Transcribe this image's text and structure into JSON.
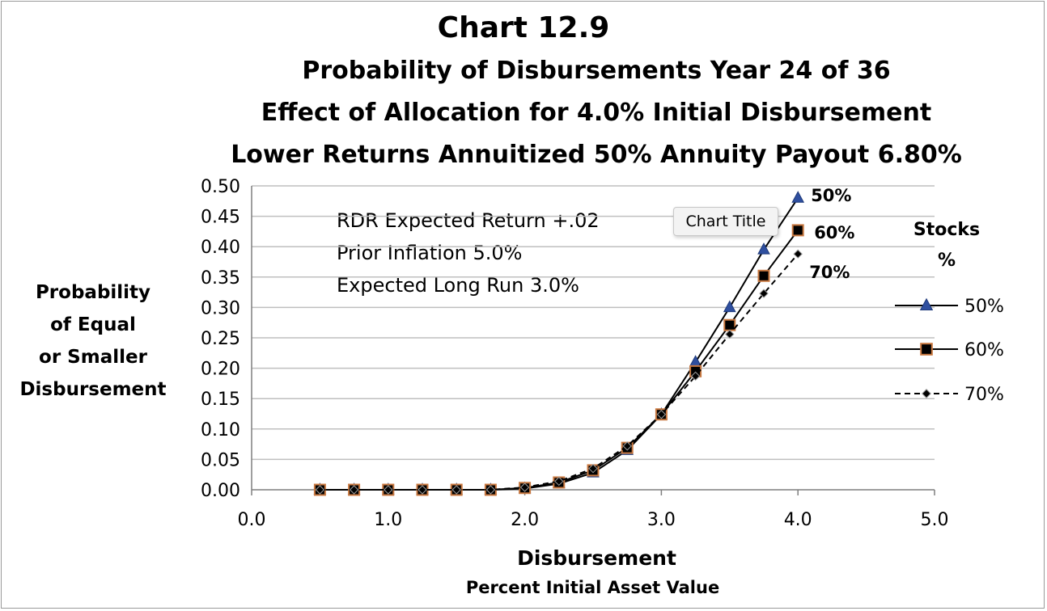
{
  "chart_data": {
    "type": "line",
    "title": "Chart 12.9",
    "subtitle_lines": [
      "Probability of Disbursements Year 24 of 36",
      "Effect of Allocation for 4.0% Initial Disbursement",
      "Lower Returns   Annuitized 50%   Annuity Payout 6.80%"
    ],
    "ylabel_lines": [
      "Probability",
      "of Equal",
      "or Smaller",
      "Disbursement"
    ],
    "xlabel": "Disbursement",
    "xlabel_sub": "Percent Initial Asset Value",
    "xlim": [
      0,
      5
    ],
    "ylim": [
      0,
      0.5
    ],
    "x_ticks": [
      "0.0",
      "1.0",
      "2.0",
      "3.0",
      "4.0",
      "5.0"
    ],
    "y_ticks": [
      "0.00",
      "0.05",
      "0.10",
      "0.15",
      "0.20",
      "0.25",
      "0.30",
      "0.35",
      "0.40",
      "0.45",
      "0.50"
    ],
    "grid": "horizontal",
    "annotation_lines": [
      "RDR  Expected Return +.02",
      "Prior Inflation 5.0%",
      "Expected Long Run 3.0%"
    ],
    "legend_title_lines": [
      "Stocks",
      "%"
    ],
    "legend_position": "right",
    "x": [
      0.5,
      0.75,
      1.0,
      1.25,
      1.5,
      1.75,
      2.0,
      2.25,
      2.5,
      2.75,
      3.0,
      3.25,
      3.5,
      3.75,
      4.0
    ],
    "series": [
      {
        "name": "50%",
        "end_label": "50%",
        "marker": "triangle",
        "line": "solid",
        "color": "#000000",
        "marker_color": "#2f4f9f",
        "values": [
          0,
          0,
          0,
          0,
          0,
          0,
          0.002,
          0.01,
          0.028,
          0.065,
          0.124,
          0.21,
          0.3,
          0.395,
          0.48
        ]
      },
      {
        "name": "60%",
        "end_label": "60%",
        "marker": "square",
        "line": "solid",
        "color": "#000000",
        "marker_color": "#000000",
        "values": [
          0,
          0,
          0,
          0,
          0,
          0,
          0.003,
          0.012,
          0.032,
          0.069,
          0.124,
          0.195,
          0.271,
          0.352,
          0.427
        ]
      },
      {
        "name": "70%",
        "end_label": "70%",
        "marker": "diamond",
        "line": "dashed",
        "color": "#000000",
        "marker_color": "#000000",
        "values": [
          0,
          0,
          0,
          0,
          0,
          0,
          0.004,
          0.014,
          0.035,
          0.072,
          0.124,
          0.187,
          0.256,
          0.323,
          0.388
        ]
      }
    ]
  },
  "ui": {
    "tooltip": "Chart Title"
  }
}
